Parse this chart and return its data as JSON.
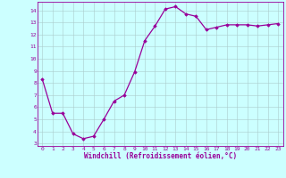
{
  "x": [
    0,
    1,
    2,
    3,
    4,
    5,
    6,
    7,
    8,
    9,
    10,
    11,
    12,
    13,
    14,
    15,
    16,
    17,
    18,
    19,
    20,
    21,
    22,
    23
  ],
  "y": [
    8.3,
    5.5,
    5.5,
    3.8,
    3.4,
    3.6,
    5.0,
    6.5,
    7.0,
    8.9,
    11.5,
    12.7,
    14.1,
    14.3,
    13.7,
    13.5,
    12.4,
    12.6,
    12.8,
    12.8,
    12.8,
    12.7,
    12.8,
    12.9
  ],
  "line_color": "#990099",
  "marker": "D",
  "marker_size": 1.8,
  "line_width": 0.9,
  "bg_color": "#ccffff",
  "grid_color": "#aacccc",
  "xlabel": "Windchill (Refroidissement éolien,°C)",
  "xlabel_color": "#990099",
  "ylabel_ticks": [
    3,
    4,
    5,
    6,
    7,
    8,
    9,
    10,
    11,
    12,
    13,
    14
  ],
  "ylim": [
    2.8,
    14.7
  ],
  "xlim": [
    -0.5,
    23.5
  ],
  "tick_color": "#990099",
  "axis_color": "#990099",
  "tick_fontsize": 4.5,
  "xlabel_fontsize": 5.5
}
